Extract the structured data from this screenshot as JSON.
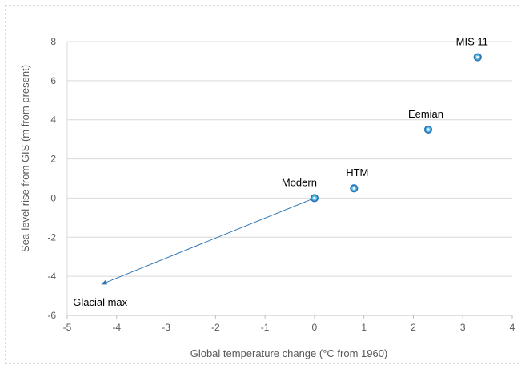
{
  "chart_data": {
    "type": "scatter",
    "title": "",
    "xlabel": "Global temperature change (°C from 1960)",
    "ylabel": "Sea-level rise from GIS (m from present)",
    "xlim": [
      -5,
      4
    ],
    "ylim": [
      -6,
      8
    ],
    "xticks": [
      -5,
      -4,
      -3,
      -2,
      -1,
      0,
      1,
      2,
      3,
      4
    ],
    "yticks": [
      -6,
      -4,
      -2,
      0,
      2,
      4,
      6,
      8
    ],
    "grid": "horizontal",
    "points": [
      {
        "label": "Modern",
        "x": 0,
        "y": 0
      },
      {
        "label": "HTM",
        "x": 0.8,
        "y": 0.5
      },
      {
        "label": "Eemian",
        "x": 2.3,
        "y": 3.5
      },
      {
        "label": "MIS 11",
        "x": 3.3,
        "y": 7.2
      }
    ],
    "arrow": {
      "from": {
        "x": 0,
        "y": 0
      },
      "to": {
        "x": -4.3,
        "y": -4.4
      },
      "label": "Glacial max"
    },
    "colors": {
      "marker_fill": "#5bc0eb",
      "marker_stroke": "#2e75b6",
      "arrow": "#2e75b6",
      "grid": "#d9d9d9",
      "axis": "#bfbfbf"
    }
  }
}
